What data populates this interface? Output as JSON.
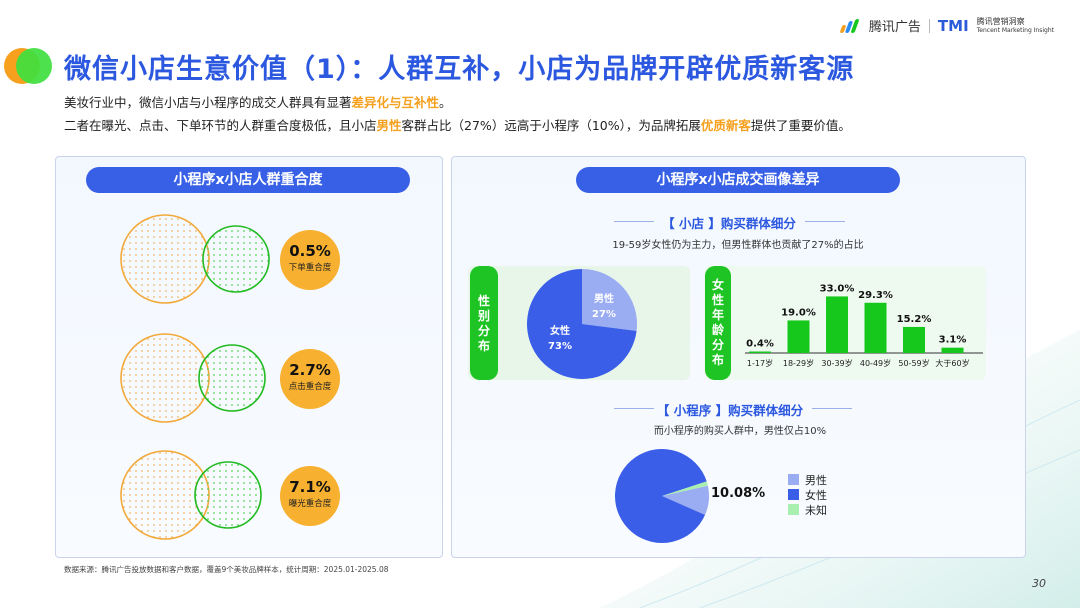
{
  "header": {
    "brand": "腾讯广告",
    "tmi": "TMI",
    "tmi_name": "腾讯营销洞察",
    "tmi_en": "Tencent Marketing Insight"
  },
  "title": "微信小店生意价值（1）：人群互补，小店为品牌开辟优质新客源",
  "subtitle1": {
    "pre": "美妆行业中，微信小店与小程序的成交人群具有显著",
    "hl": "差异化与互补性",
    "post": "。"
  },
  "subtitle2": {
    "p1": "二者在曝光、点击、下单环节的人群重合度极低，且小店",
    "hl1": "男性",
    "p2": "客群占比（27%）远高于小程序（10%），为品牌拓展",
    "hl2": "优质新客",
    "p3": "提供了重要价值。"
  },
  "left_panel": {
    "title": "小程序x小店人群重合度",
    "items": [
      {
        "value": "0.5%",
        "label": "下单重合度"
      },
      {
        "value": "2.7%",
        "label": "点击重合度"
      },
      {
        "value": "7.1%",
        "label": "曝光重合度"
      }
    ]
  },
  "right_panel": {
    "title": "小程序x小店成交画像差异",
    "shop_title": "【 小店 】购买群体细分",
    "shop_note": "19-59岁女性仍为主力，但男性群体也贡献了27%的占比",
    "gender_label": "性别分布",
    "age_label": "女性年龄分布",
    "mini_title": "【 小程序 】购买群体细分",
    "mini_note": "而小程序的购买人群中，男性仅占10%",
    "mini_callout": "10.08%"
  },
  "colors": {
    "blue": "#3a5ee8",
    "light_blue": "#9aacf2",
    "green": "#16c81c",
    "light_green": "#a9efb0",
    "orange": "#f7b030"
  },
  "chart_data": [
    {
      "type": "pie",
      "title": "性别分布",
      "slices": [
        {
          "name": "男性",
          "value": 27,
          "label": "27%"
        },
        {
          "name": "女性",
          "value": 73,
          "label": "73%"
        }
      ]
    },
    {
      "type": "bar",
      "title": "女性年龄分布",
      "categories": [
        "1-17岁",
        "18-29岁",
        "30-39岁",
        "40-49岁",
        "50-59岁",
        "大于60岁"
      ],
      "values": [
        0.4,
        19.0,
        33.0,
        29.3,
        15.2,
        3.1
      ],
      "labels": [
        "0.4%",
        "19.0%",
        "33.0%",
        "29.3%",
        "15.2%",
        "3.1%"
      ],
      "ylim": [
        0,
        35
      ]
    },
    {
      "type": "pie",
      "slices": [
        {
          "name": "男性",
          "value": 10.08
        },
        {
          "name": "女性",
          "value": 88.4
        },
        {
          "name": "未知",
          "value": 1.52
        }
      ],
      "legend": [
        "男性",
        "女性",
        "未知"
      ]
    }
  ],
  "footer": {
    "source": "数据来源：腾讯广告投放数据和客户数据，覆盖9个美妆品牌样本，统计周期：2025.01-2025.08",
    "page": "30"
  }
}
